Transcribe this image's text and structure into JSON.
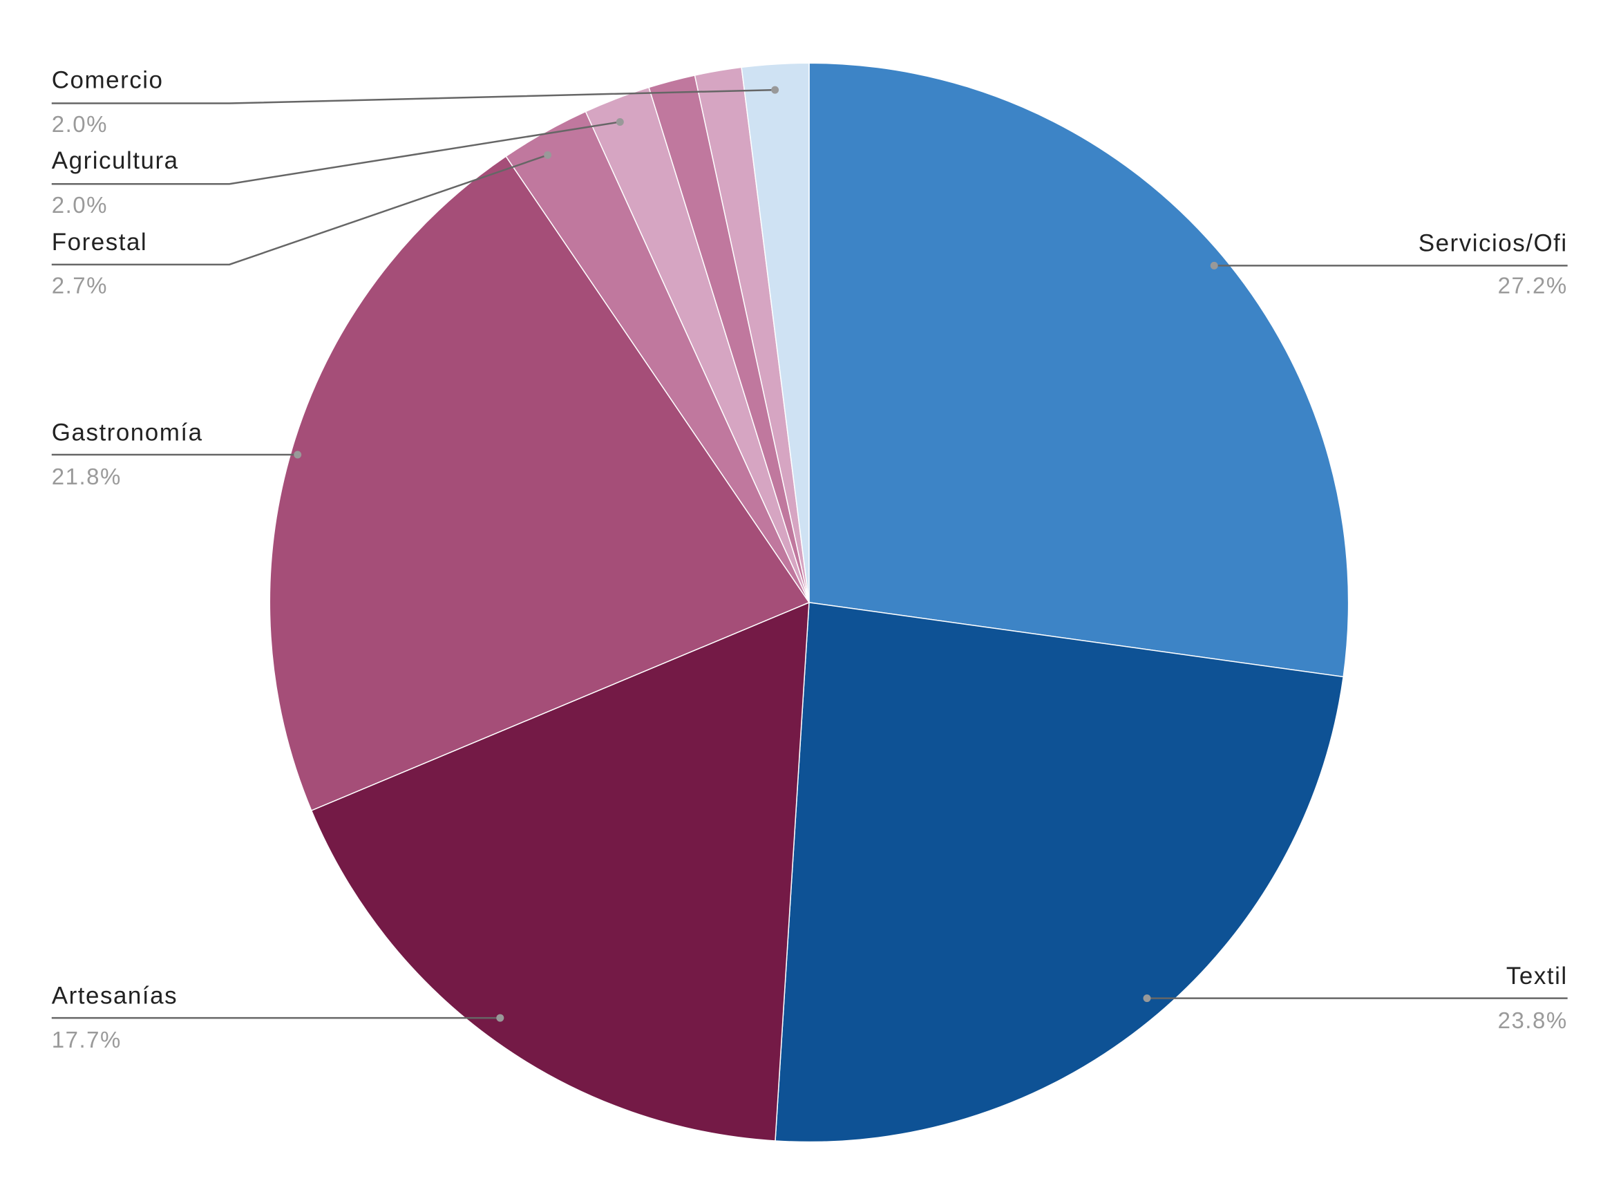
{
  "chart_data": {
    "type": "pie",
    "categories": [
      "Servicios/Ofi",
      "Textil",
      "Artesanías",
      "Gastronomía",
      "Forestal",
      "Agricultura",
      null,
      null,
      "Comercio"
    ],
    "values": [
      27.2,
      23.8,
      17.7,
      21.8,
      2.7,
      2.0,
      1.4,
      1.4,
      2.0
    ],
    "value_labels": [
      "27.2%",
      "23.8%",
      "17.7%",
      "21.8%",
      "2.7%",
      "2.0%",
      null,
      null,
      "2.0%"
    ],
    "colors": [
      "#3d84c6",
      "#0e5295",
      "#741a46",
      "#a54e78",
      "#c0789e",
      "#d6a5c2",
      "#c0789e",
      "#d6a5c2",
      "#cfe2f3"
    ]
  }
}
